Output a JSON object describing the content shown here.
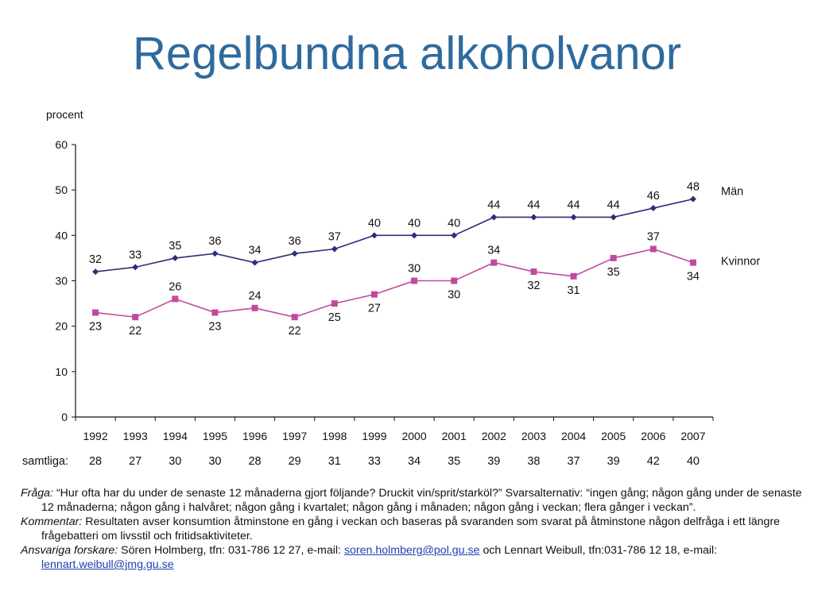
{
  "title": "Regelbundna alkoholvanor",
  "chart_data": {
    "type": "line",
    "ylabel": "procent",
    "ylim": [
      0,
      60
    ],
    "yticks": [
      0,
      10,
      20,
      30,
      40,
      50,
      60
    ],
    "categories": [
      "1992",
      "1993",
      "1994",
      "1995",
      "1996",
      "1997",
      "1998",
      "1999",
      "2000",
      "2001",
      "2002",
      "2003",
      "2004",
      "2005",
      "2006",
      "2007"
    ],
    "series": [
      {
        "name": "Män",
        "color": "#2b2f7a",
        "marker": "diamond",
        "values": [
          32,
          33,
          35,
          36,
          34,
          36,
          37,
          40,
          40,
          40,
          44,
          44,
          44,
          44,
          46,
          48
        ]
      },
      {
        "name": "Kvinnor",
        "color": "#c04a9e",
        "marker": "square",
        "values": [
          23,
          22,
          26,
          23,
          24,
          22,
          25,
          27,
          30,
          30,
          34,
          32,
          31,
          35,
          37,
          34
        ]
      }
    ],
    "samtliga_label": "samtliga:",
    "samtliga": [
      28,
      27,
      30,
      30,
      28,
      29,
      31,
      33,
      34,
      35,
      39,
      38,
      37,
      39,
      42,
      40
    ],
    "grid": false,
    "legend": "right, at line ends"
  },
  "notes": {
    "fraga_label": "Fråga:",
    "fraga_text": " “Hur ofta har du under de senaste 12 månaderna gjort följande? Druckit vin/sprit/starköl?” Svarsalternativ: “ingen gång; någon gång under de senaste 12 månaderna; någon gång i halvåret; någon gång i kvartalet; någon gång i månaden; någon gång i veckan; flera gånger i veckan”.",
    "kommentar_label": "Kommentar:",
    "kommentar_text": " Resultaten avser konsumtion åtminstone en gång i veckan och baseras på svaranden som svarat på åtminstone någon delfråga i ett längre frågebatteri om livsstil och fritidsaktiviteter.",
    "ansvariga_label": "Ansvariga forskare:",
    "ansvariga_text1": " Sören Holmberg, tfn: 031-786 12 27, e-mail: ",
    "email1": "soren.holmberg@pol.gu.se",
    "ansvariga_text2": " och Lennart Weibull, tfn:031-786 12 18, e-mail: ",
    "email2": "lennart.weibull@jmg.gu.se"
  }
}
